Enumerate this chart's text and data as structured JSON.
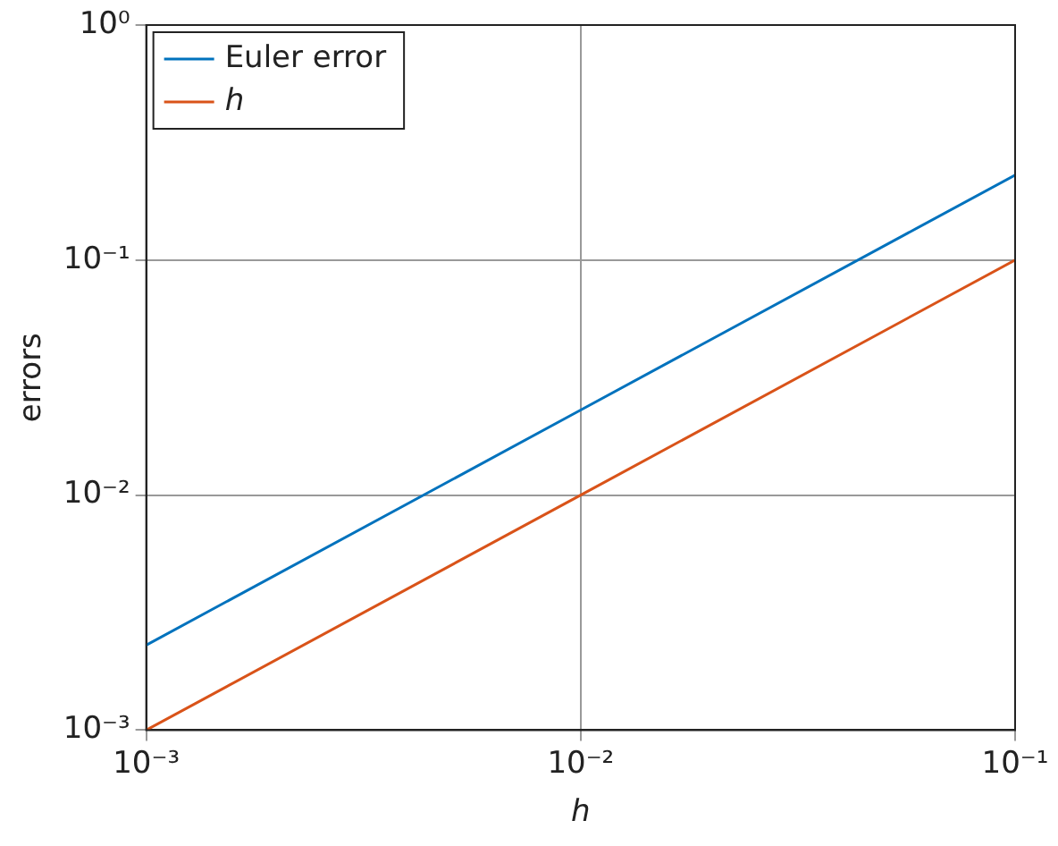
{
  "chart_data": {
    "type": "line",
    "xlabel": "h",
    "ylabel": "errors",
    "log": "xy",
    "grid": true,
    "legend": "top left",
    "marker": "none",
    "line_style": "solid",
    "xlim": [
      0.001,
      0.1
    ],
    "ylim": [
      0.001,
      1
    ],
    "xticks": [
      {
        "value": 0.001,
        "label": "10⁻³"
      },
      {
        "value": 0.01,
        "label": "10⁻²"
      },
      {
        "value": 0.1,
        "label": "10⁻¹"
      }
    ],
    "yticks": [
      {
        "value": 0.001,
        "label": "10⁻³"
      },
      {
        "value": 0.01,
        "label": "10⁻²"
      },
      {
        "value": 0.1,
        "label": "10⁻¹"
      },
      {
        "value": 1,
        "label": "10⁰"
      }
    ],
    "series": [
      {
        "name": "Euler error",
        "color": "#0072bd",
        "x": [
          0.001,
          0.01,
          0.1
        ],
        "values": [
          0.0023,
          0.023,
          0.23
        ]
      },
      {
        "name": "h",
        "color": "#d95319",
        "x": [
          0.001,
          0.01,
          0.1
        ],
        "values": [
          0.001,
          0.01,
          0.1
        ]
      }
    ]
  }
}
